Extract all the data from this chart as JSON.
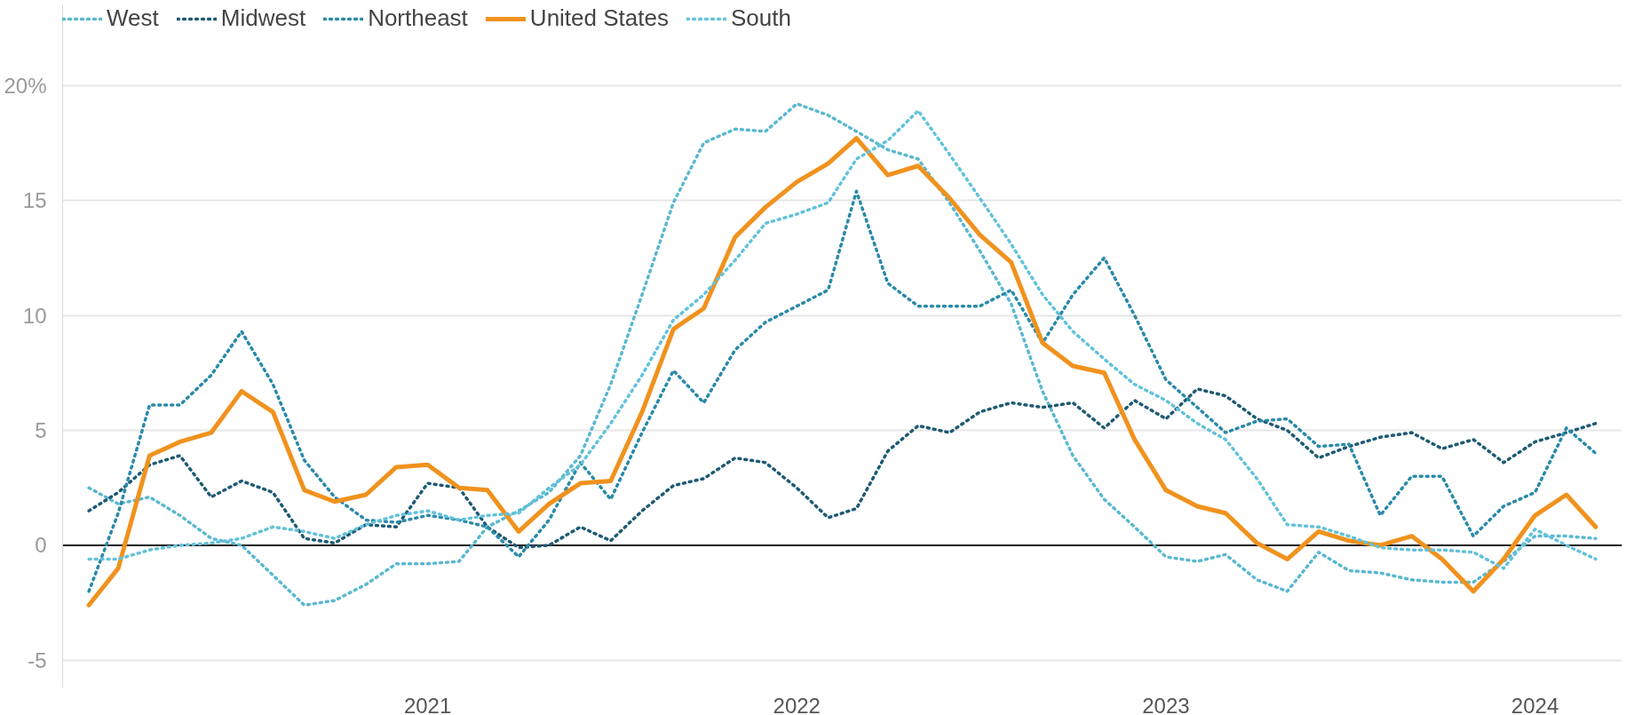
{
  "chart_data": {
    "type": "line",
    "x": [
      "2020-02",
      "2020-03",
      "2020-04",
      "2020-05",
      "2020-06",
      "2020-07",
      "2020-08",
      "2020-09",
      "2020-10",
      "2020-11",
      "2020-12",
      "2021-01",
      "2021-02",
      "2021-03",
      "2021-04",
      "2021-05",
      "2021-06",
      "2021-07",
      "2021-08",
      "2021-09",
      "2021-10",
      "2021-11",
      "2021-12",
      "2022-01",
      "2022-02",
      "2022-03",
      "2022-04",
      "2022-05",
      "2022-06",
      "2022-07",
      "2022-08",
      "2022-09",
      "2022-10",
      "2022-11",
      "2022-12",
      "2023-01",
      "2023-02",
      "2023-03",
      "2023-04",
      "2023-05",
      "2023-06",
      "2023-07",
      "2023-08",
      "2023-09",
      "2023-10",
      "2023-11",
      "2023-12",
      "2024-01",
      "2024-02",
      "2024-03"
    ],
    "series": [
      {
        "name": "West",
        "color": "#5ab8d0",
        "line_style": "dotted",
        "values": [
          2.5,
          1.8,
          2.1,
          1.3,
          0.3,
          0.0,
          -1.3,
          -2.6,
          -2.4,
          -1.7,
          -0.8,
          -0.8,
          -0.7,
          0.8,
          1.5,
          2.3,
          3.9,
          7.0,
          10.9,
          14.9,
          17.5,
          18.1,
          18.0,
          19.2,
          18.7,
          18.0,
          17.2,
          16.8,
          14.9,
          12.8,
          10.5,
          6.7,
          3.9,
          2.0,
          0.8,
          -0.5,
          -0.7,
          -0.4,
          -1.5,
          -2.0,
          -0.3,
          -1.1,
          -1.2,
          -1.5,
          -1.6,
          -1.6,
          -0.7,
          0.4,
          0.4,
          0.3
        ]
      },
      {
        "name": "Midwest",
        "color": "#1e5a73",
        "line_style": "dotted",
        "values": [
          1.5,
          2.3,
          3.5,
          3.9,
          2.1,
          2.8,
          2.3,
          0.3,
          0.1,
          0.9,
          0.8,
          2.7,
          2.5,
          0.8,
          -0.1,
          0.0,
          0.8,
          0.2,
          1.5,
          2.6,
          2.9,
          3.8,
          3.6,
          2.5,
          1.2,
          1.6,
          4.1,
          5.2,
          4.9,
          5.8,
          6.2,
          6.0,
          6.2,
          5.1,
          6.3,
          5.5,
          6.8,
          6.5,
          5.5,
          5.0,
          3.8,
          4.3,
          4.7,
          4.9,
          4.2,
          4.6,
          3.6,
          4.5,
          4.9,
          5.3
        ]
      },
      {
        "name": "Northeast",
        "color": "#2a8aa8",
        "line_style": "dotted",
        "values": [
          -2.0,
          1.4,
          6.1,
          6.1,
          7.4,
          9.3,
          7.0,
          3.7,
          2.1,
          1.1,
          1.0,
          1.3,
          1.1,
          0.8,
          -0.5,
          1.1,
          3.6,
          2.0,
          4.9,
          7.6,
          6.2,
          8.5,
          9.7,
          10.4,
          11.1,
          15.4,
          11.4,
          10.4,
          10.4,
          10.4,
          11.1,
          8.8,
          10.9,
          12.5,
          10.0,
          7.2,
          6.0,
          4.9,
          5.4,
          5.5,
          4.3,
          4.4,
          1.3,
          3.0,
          3.0,
          0.4,
          1.7,
          2.3,
          5.1,
          4.0
        ]
      },
      {
        "name": "United States",
        "color": "#f0921e",
        "line_style": "solid",
        "values": [
          -2.6,
          -1.0,
          3.9,
          4.5,
          4.9,
          6.7,
          5.8,
          2.4,
          1.9,
          2.2,
          3.4,
          3.5,
          2.5,
          2.4,
          0.6,
          1.8,
          2.7,
          2.8,
          5.8,
          9.4,
          10.3,
          13.4,
          14.7,
          15.8,
          16.6,
          17.7,
          16.1,
          16.5,
          15.1,
          13.5,
          12.3,
          8.8,
          7.8,
          7.5,
          4.6,
          2.4,
          1.7,
          1.4,
          0.1,
          -0.6,
          0.6,
          0.2,
          0.0,
          0.4,
          -0.6,
          -2.0,
          -0.6,
          1.3,
          2.2,
          0.8
        ]
      },
      {
        "name": "South",
        "color": "#62c2da",
        "line_style": "dotted",
        "values": [
          -0.6,
          -0.6,
          -0.2,
          0.0,
          0.1,
          0.3,
          0.8,
          0.6,
          0.3,
          0.9,
          1.3,
          1.5,
          1.1,
          1.3,
          1.4,
          2.5,
          3.5,
          5.3,
          7.4,
          9.8,
          10.9,
          12.4,
          14.0,
          14.4,
          14.9,
          16.8,
          17.6,
          18.9,
          17.0,
          15.1,
          13.1,
          10.9,
          9.3,
          8.1,
          7.0,
          6.3,
          5.3,
          4.6,
          2.9,
          0.9,
          0.8,
          0.4,
          -0.1,
          -0.2,
          -0.2,
          -0.3,
          -1.0,
          0.7,
          0.0,
          -0.6
        ]
      }
    ],
    "xlim": [
      "2020-01-06",
      "2024-03-27"
    ],
    "xticks": [
      {
        "value": "2021-01",
        "label": "2021"
      },
      {
        "value": "2022-01",
        "label": "2022"
      },
      {
        "value": "2023-01",
        "label": "2023"
      },
      {
        "value": "2024-01",
        "label": "2024"
      }
    ],
    "ylim": [
      -6.2,
      23.5
    ],
    "yticks": [
      {
        "value": -5,
        "label": "-5"
      },
      0,
      5,
      10,
      15,
      {
        "value": 20,
        "label": "20%"
      }
    ],
    "ref_lines": [
      {
        "axis": "y",
        "value": 0,
        "color": "#222222"
      }
    ],
    "grid": "y",
    "legend": "top left"
  }
}
